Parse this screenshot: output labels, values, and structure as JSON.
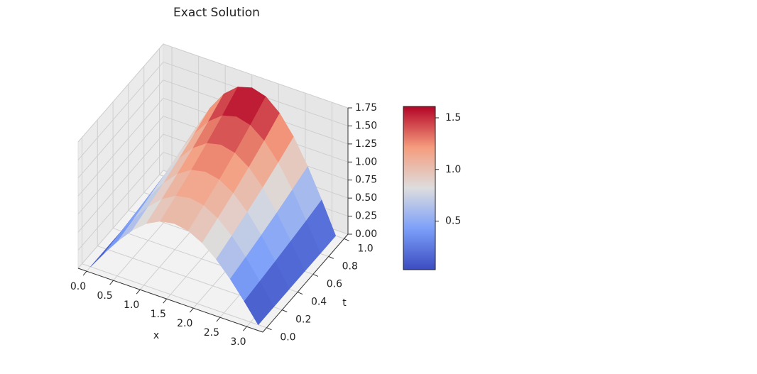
{
  "chart_data": {
    "type": "surface3d",
    "title": "Exact Solution",
    "xlabel": "x",
    "ylabel": "t",
    "x": [
      0,
      0.262,
      0.524,
      0.785,
      1.047,
      1.309,
      1.571,
      1.833,
      2.094,
      2.356,
      2.618,
      2.88,
      3.142
    ],
    "t": [
      0,
      0.2,
      0.4,
      0.6,
      0.8,
      1.0
    ],
    "z": [
      [
        0,
        0.259,
        0.5,
        0.707,
        0.866,
        0.966,
        1,
        0.966,
        0.866,
        0.707,
        0.5,
        0.259,
        0
      ],
      [
        0,
        0.286,
        0.553,
        0.781,
        0.957,
        1.068,
        1.105,
        1.068,
        0.957,
        0.781,
        0.553,
        0.286,
        0
      ],
      [
        0,
        0.316,
        0.611,
        0.864,
        1.058,
        1.18,
        1.221,
        1.18,
        1.058,
        0.864,
        0.611,
        0.316,
        0
      ],
      [
        0,
        0.349,
        0.675,
        0.955,
        1.169,
        1.304,
        1.35,
        1.304,
        1.169,
        0.955,
        0.675,
        0.349,
        0
      ],
      [
        0,
        0.386,
        0.746,
        1.055,
        1.292,
        1.441,
        1.492,
        1.441,
        1.292,
        1.055,
        0.746,
        0.386,
        0
      ],
      [
        0,
        0.427,
        0.824,
        1.166,
        1.428,
        1.593,
        1.649,
        1.593,
        1.428,
        1.166,
        0.824,
        0.427,
        0
      ]
    ],
    "colormap": "coolwarm",
    "xlim": [
      -0.16,
      3.3
    ],
    "ylim": [
      -0.05,
      1.05
    ],
    "zlim": [
      0,
      1.75
    ],
    "xticks": [
      {
        "value": 0,
        "label": "0.0"
      },
      0.5,
      {
        "value": 1,
        "label": "1.0"
      },
      1.5,
      {
        "value": 2,
        "label": "2.0"
      },
      2.5,
      {
        "value": 3,
        "label": "3.0"
      }
    ],
    "yticks": [
      {
        "value": 0,
        "label": "0.0"
      },
      0.2,
      0.4,
      0.6,
      0.8,
      {
        "value": 1,
        "label": "1.0"
      }
    ],
    "zticks": [
      {
        "value": 0,
        "label": "0.00"
      },
      0.25,
      {
        "value": 0.5,
        "label": "0.50"
      },
      0.75,
      {
        "value": 1,
        "label": "1.00"
      },
      1.25,
      {
        "value": 1.5,
        "label": "1.50"
      },
      1.75
    ],
    "clim": [
      0.03,
      1.61
    ],
    "cticks": [
      0.5,
      {
        "value": 1,
        "label": "1.0"
      },
      1.5
    ],
    "grid": true
  }
}
